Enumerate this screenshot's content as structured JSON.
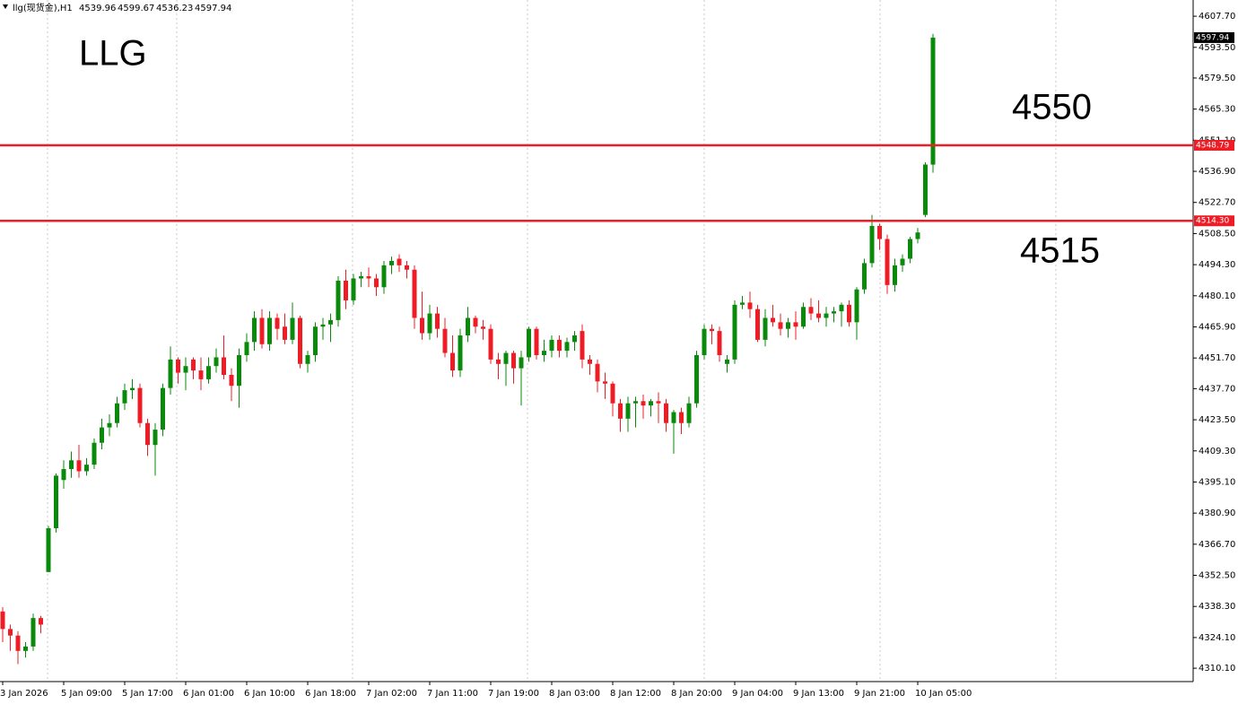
{
  "chart_data": {
    "type": "candlestick",
    "title": "llg(现货金),H1",
    "annotations": [
      "LLG",
      "4550",
      "4515"
    ],
    "categories": [
      "3 Jan 2026",
      null,
      null,
      null,
      null,
      null,
      null,
      null,
      "5 Jan 09:00",
      null,
      null,
      null,
      null,
      null,
      null,
      null,
      "5 Jan 17:00",
      null,
      null,
      null,
      null,
      null,
      null,
      null,
      "6 Jan 01:00",
      null,
      null,
      null,
      null,
      null,
      null,
      null,
      "6 Jan 10:00",
      null,
      null,
      null,
      null,
      null,
      null,
      null,
      "6 Jan 18:00",
      null,
      null,
      null,
      null,
      null,
      null,
      null,
      "7 Jan 02:00",
      null,
      null,
      null,
      null,
      null,
      null,
      null,
      "7 Jan 11:00",
      null,
      null,
      null,
      null,
      null,
      null,
      null,
      "7 Jan 19:00",
      null,
      null,
      null,
      null,
      null,
      null,
      null,
      "8 Jan 03:00",
      null,
      null,
      null,
      null,
      null,
      null,
      null,
      "8 Jan 12:00",
      null,
      null,
      null,
      null,
      null,
      null,
      null,
      "8 Jan 20:00",
      null,
      null,
      null,
      null,
      null,
      null,
      null,
      "9 Jan 04:00",
      null,
      null,
      null,
      null,
      null,
      null,
      null,
      "9 Jan 13:00",
      null,
      null,
      null,
      null,
      null,
      null,
      null,
      "9 Jan 21:00",
      null,
      null,
      null,
      null,
      null,
      null,
      null,
      "10 Jan 05:00",
      null,
      null
    ],
    "open": [
      4336,
      4328,
      4325,
      4318,
      4320,
      4333,
      4354,
      4374,
      4396,
      4401,
      4405,
      4400,
      4403,
      4413,
      4420,
      4422,
      4431,
      4437,
      4438,
      4422,
      4412,
      4419,
      4438,
      4451,
      4445,
      4451,
      4446,
      4442,
      4448,
      4452,
      4444,
      4439,
      4453,
      4459,
      4470,
      4458,
      4470,
      4466,
      4460,
      4470,
      4449,
      4453,
      4466,
      4467,
      4469,
      4487,
      4478,
      4488,
      4489,
      4488,
      4484,
      4494,
      4497,
      4494,
      4492,
      4470,
      4463,
      4472,
      4465,
      4454,
      4446,
      4462,
      4470,
      4466,
      4465,
      4451,
      4449,
      4454,
      4447,
      4452,
      4465,
      4453,
      4455,
      4460,
      4455,
      4459,
      4464,
      4451,
      4449,
      4441,
      4440,
      4431,
      4424,
      4431,
      4432,
      4430,
      4432,
      4431,
      4422,
      4427,
      4422,
      4431,
      4453,
      4465,
      4464,
      4449,
      4451,
      4476,
      4477,
      4474,
      4460,
      4470,
      4468,
      4465,
      4468,
      4466,
      4475,
      4472,
      4470,
      4472,
      4473,
      4476,
      4468,
      4483,
      4495,
      4512,
      4506,
      4485,
      4494,
      4497,
      4506,
      4517,
      4539.96
    ],
    "high": [
      4338,
      4330,
      4327,
      4322,
      4335,
      4334,
      4375,
      4399,
      4405,
      4409,
      4412,
      4406,
      4415,
      4424,
      4426,
      4434,
      4440,
      4442,
      4440,
      4424,
      4422,
      4440,
      4457,
      4452,
      4452,
      4452,
      4452,
      4452,
      4456,
      4462,
      4447,
      4456,
      4463,
      4473,
      4474,
      4473,
      4472,
      4472,
      4477,
      4471,
      4455,
      4468,
      4470,
      4472,
      4489,
      4492,
      4490,
      4491,
      4493,
      4490,
      4496,
      4498,
      4499,
      4496,
      4494,
      4482,
      4476,
      4475,
      4470,
      4462,
      4465,
      4475,
      4471,
      4469,
      4467,
      4454,
      4455,
      4455,
      4455,
      4466,
      4466,
      4460,
      4462,
      4462,
      4461,
      4464,
      4467,
      4453,
      4451,
      4445,
      4441,
      4433,
      4434,
      4434,
      4435,
      4433,
      4436,
      4433,
      4428,
      4429,
      4434,
      4455,
      4467,
      4467,
      4466,
      4453,
      4478,
      4480,
      4482,
      4476,
      4474,
      4476,
      4472,
      4470,
      4473,
      4477,
      4479,
      4478,
      4475,
      4475,
      4477,
      4478,
      4484,
      4497,
      4517,
      4513,
      4508,
      4497,
      4499,
      4507,
      4511,
      4541,
      4599.67
    ],
    "low": [
      4322,
      4318,
      4312,
      4315,
      4318,
      4326,
      4354,
      4372,
      4392,
      4397,
      4397,
      4398,
      4401,
      4410,
      4416,
      4420,
      4428,
      4433,
      4420,
      4407,
      4398,
      4416,
      4435,
      4440,
      4437,
      4442,
      4437,
      4440,
      4445,
      4442,
      4432,
      4429,
      4450,
      4455,
      4456,
      4455,
      4460,
      4458,
      4458,
      4447,
      4445,
      4450,
      4460,
      4459,
      4466,
      4474,
      4476,
      4484,
      4484,
      4480,
      4481,
      4490,
      4491,
      4488,
      4465,
      4460,
      4460,
      4461,
      4452,
      4443,
      4443,
      4459,
      4463,
      4460,
      4449,
      4442,
      4439,
      4440,
      4430,
      4450,
      4451,
      4450,
      4452,
      4452,
      4452,
      4455,
      4447,
      4444,
      4436,
      4433,
      4425,
      4418,
      4418,
      4420,
      4424,
      4425,
      4422,
      4418,
      4408,
      4417,
      4420,
      4429,
      4451,
      4458,
      4450,
      4445,
      4449,
      4474,
      4470,
      4459,
      4457,
      4466,
      4462,
      4461,
      4460,
      4465,
      4469,
      4468,
      4466,
      4468,
      4466,
      4466,
      4460,
      4481,
      4493,
      4501,
      4481,
      4482,
      4491,
      4495,
      4504,
      4516,
      4536.23
    ],
    "close": [
      4328,
      4325,
      4318,
      4320,
      4333,
      4330,
      4374,
      4398,
      4401,
      4405,
      4400,
      4403,
      4413,
      4420,
      4422,
      4431,
      4437,
      4438,
      4422,
      4412,
      4419,
      4438,
      4451,
      4445,
      4448,
      4446,
      4442,
      4448,
      4452,
      4444,
      4439,
      4453,
      4459,
      4470,
      4458,
      4470,
      4465,
      4460,
      4470,
      4449,
      4453,
      4466,
      4467,
      4469,
      4487,
      4478,
      4488,
      4489,
      4488,
      4484,
      4494,
      4496,
      4494,
      4492,
      4470,
      4463,
      4472,
      4465,
      4454,
      4446,
      4462,
      4470,
      4466,
      4465,
      4451,
      4449,
      4454,
      4447,
      4452,
      4465,
      4453,
      4455,
      4460,
      4455,
      4459,
      4462,
      4451,
      4449,
      4441,
      4440,
      4431,
      4424,
      4431,
      4432,
      4430,
      4432,
      4431,
      4422,
      4427,
      4422,
      4431,
      4453,
      4465,
      4464,
      4453,
      4451,
      4476,
      4477,
      4474,
      4460,
      4470,
      4468,
      4465,
      4468,
      4466,
      4475,
      4472,
      4470,
      4472,
      4473,
      4476,
      4468,
      4483,
      4495,
      4512,
      4506,
      4485,
      4494,
      4497,
      4506,
      4509,
      4540,
      4597.94
    ],
    "up_color": "#0a8a0a",
    "down_color": "#ee1c25",
    "line_color": "#ee1c25",
    "hlines": [
      4548.79,
      {
        "value": 4514.3,
        "label": "4514.30"
      }
    ],
    "ylim": [
      4304.0,
      4615.1
    ],
    "yticks": [
      {
        "value": 4607.7,
        "label": "4607.70"
      },
      {
        "value": 4593.5,
        "label": "4593.50"
      },
      {
        "value": 4579.5,
        "label": "4579.50"
      },
      {
        "value": 4565.3,
        "label": "4565.30"
      },
      {
        "value": 4551.1,
        "label": "4551.10"
      },
      {
        "value": 4536.9,
        "label": "4536.90"
      },
      {
        "value": 4522.7,
        "label": "4522.70"
      },
      {
        "value": 4508.5,
        "label": "4508.50"
      },
      {
        "value": 4494.3,
        "label": "4494.30"
      },
      {
        "value": 4480.1,
        "label": "4480.10"
      },
      {
        "value": 4465.9,
        "label": "4465.90"
      },
      {
        "value": 4451.7,
        "label": "4451.70"
      },
      {
        "value": 4437.7,
        "label": "4437.70"
      },
      {
        "value": 4423.5,
        "label": "4423.50"
      },
      {
        "value": 4409.3,
        "label": "4409.30"
      },
      {
        "value": 4395.1,
        "label": "4395.10"
      },
      {
        "value": 4380.9,
        "label": "4380.90"
      },
      {
        "value": 4366.7,
        "label": "4366.70"
      },
      {
        "value": 4352.5,
        "label": "4352.50"
      },
      {
        "value": 4338.3,
        "label": "4338.30"
      },
      {
        "value": 4324.1,
        "label": "4324.10"
      },
      {
        "value": 4310.1,
        "label": "4310.10"
      }
    ]
  }
}
